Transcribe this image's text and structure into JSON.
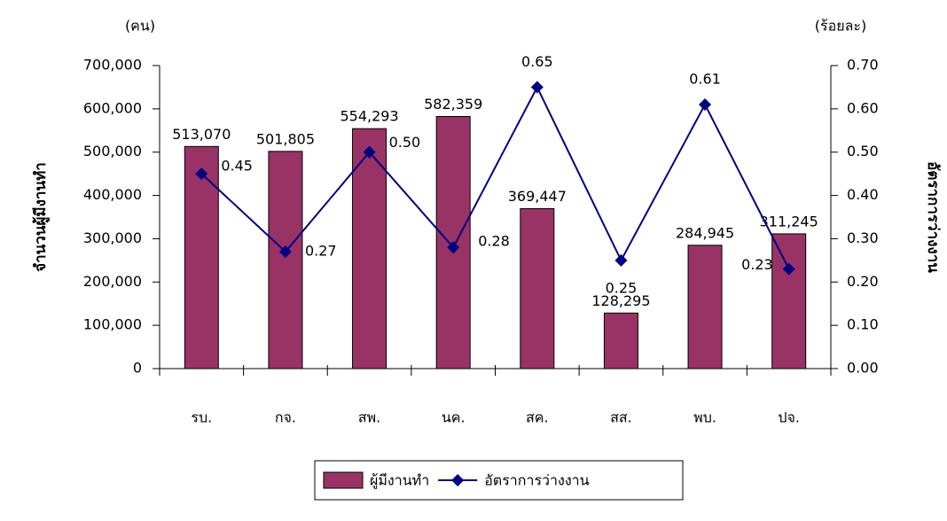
{
  "chart_data": {
    "type": "combo",
    "categories": [
      "รบ.",
      "กจ.",
      "สพ.",
      "นค.",
      "สค.",
      "สส.",
      "พบ.",
      "ปจ."
    ],
    "series": [
      {
        "name": "ผู้มีงานทำ",
        "type": "bar",
        "color": "#993366",
        "values": [
          513070,
          501805,
          554293,
          582359,
          369447,
          128295,
          284945,
          311245
        ],
        "value_labels": [
          "513,070",
          "501,805",
          "554,293",
          "582,359",
          "369,447",
          "128,295",
          "284,945",
          "311,245"
        ]
      },
      {
        "name": "อัตราการว่างงาน",
        "type": "line",
        "axis": "y2",
        "color": "#000080",
        "values": [
          0.45,
          0.27,
          0.5,
          0.28,
          0.65,
          0.25,
          0.61,
          0.23
        ],
        "value_labels": [
          "0.45",
          "0.27",
          "0.50",
          "0.28",
          "0.65",
          "0.25",
          "0.61",
          "0.23"
        ]
      }
    ],
    "ylim": [
      0,
      700000
    ],
    "yticks": [
      0,
      {
        "value": 100000,
        "label": "100,000"
      },
      {
        "value": 200000,
        "label": "200,000"
      },
      {
        "value": 300000,
        "label": "300,000"
      },
      {
        "value": 400000,
        "label": "400,000"
      },
      {
        "value": 500000,
        "label": "500,000"
      },
      {
        "value": 600000,
        "label": "600,000"
      },
      {
        "value": 700000,
        "label": "700,000"
      }
    ],
    "y2lim": [
      0,
      0.7
    ],
    "y2ticks": [
      {
        "value": 0,
        "label": "0.00"
      },
      {
        "value": 0.1,
        "label": "0.10"
      },
      {
        "value": 0.2,
        "label": "0.20"
      },
      {
        "value": 0.3,
        "label": "0.30"
      },
      {
        "value": 0.4,
        "label": "0.40"
      },
      {
        "value": 0.5,
        "label": "0.50"
      },
      {
        "value": 0.6,
        "label": "0.60"
      },
      {
        "value": 0.7,
        "label": "0.70"
      }
    ],
    "y_label": "จำนวนผู้มีงานทำ",
    "y2_label": "อัตราการว่างงาน",
    "y_unit": "(คน)",
    "y2_unit": "(ร้อยละ)",
    "legend": "bottom"
  }
}
